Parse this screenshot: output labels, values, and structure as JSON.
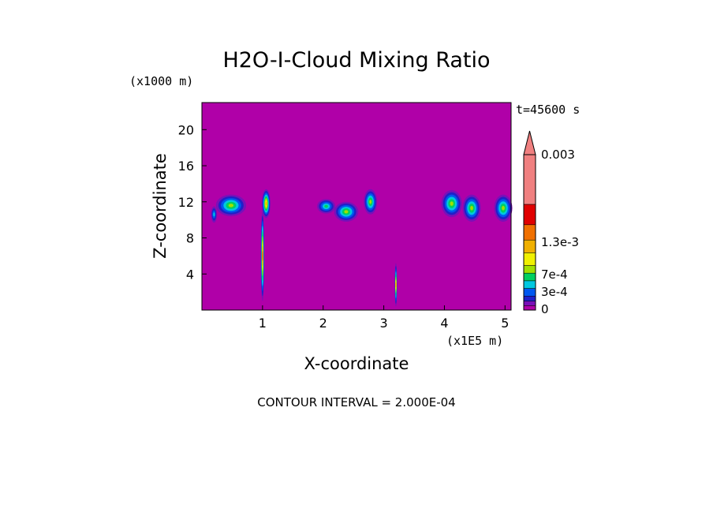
{
  "chart_data": {
    "type": "heatmap",
    "title": "H2O-I-Cloud Mixing Ratio",
    "xlabel": "X-coordinate",
    "ylabel": "Z-coordinate",
    "x_unit": "(x1E5 m)",
    "y_unit": "(x1000 m)",
    "time_label": "t=45600 s",
    "footer": "CONTOUR INTERVAL = 2.000E-04",
    "xlim": [
      0,
      5.1
    ],
    "ylim": [
      0,
      23
    ],
    "x_ticks": [
      "1",
      "2",
      "3",
      "4",
      "5"
    ],
    "x_tick_values": [
      1,
      2,
      3,
      4,
      5
    ],
    "y_ticks": [
      "4",
      "8",
      "12",
      "16",
      "20"
    ],
    "y_tick_values": [
      4,
      8,
      12,
      16,
      20
    ],
    "background_color": "#b000a8",
    "colorbar": {
      "tick_labels": [
        "0.003",
        "1.3e-3",
        "7e-4",
        "3e-4",
        "0"
      ],
      "tick_values": [
        0.003,
        0.0013,
        0.0007,
        0.0003,
        0
      ],
      "colors": [
        "#b000a8",
        "#7a10b8",
        "#2020c8",
        "#0058f0",
        "#00c8e0",
        "#00d060",
        "#a0e000",
        "#f0f000",
        "#f0b000",
        "#f07000",
        "#e00000",
        "#f08080"
      ]
    },
    "cloud_cells": [
      {
        "x": 0.2,
        "z": 10.6,
        "w": 0.1,
        "h": 1.8,
        "peak": 0.0006
      },
      {
        "x": 0.48,
        "z": 11.6,
        "w": 0.5,
        "h": 2.4,
        "peak": 0.0012
      },
      {
        "x": 1.06,
        "z": 11.8,
        "w": 0.14,
        "h": 3.2,
        "peak": 0.0015
      },
      {
        "x": 1.0,
        "z": 6.0,
        "w": 0.06,
        "h": 10.0,
        "peak": 0.002
      },
      {
        "x": 2.05,
        "z": 11.5,
        "w": 0.3,
        "h": 1.6,
        "peak": 0.0008
      },
      {
        "x": 2.38,
        "z": 10.9,
        "w": 0.4,
        "h": 2.2,
        "peak": 0.0012
      },
      {
        "x": 2.78,
        "z": 12.0,
        "w": 0.22,
        "h": 2.8,
        "peak": 0.001
      },
      {
        "x": 3.2,
        "z": 2.8,
        "w": 0.04,
        "h": 4.8,
        "peak": 0.0015
      },
      {
        "x": 4.12,
        "z": 11.8,
        "w": 0.34,
        "h": 3.0,
        "peak": 0.0011
      },
      {
        "x": 4.45,
        "z": 11.3,
        "w": 0.3,
        "h": 3.0,
        "peak": 0.0012
      },
      {
        "x": 4.97,
        "z": 11.3,
        "w": 0.3,
        "h": 3.0,
        "peak": 0.0012
      }
    ]
  }
}
